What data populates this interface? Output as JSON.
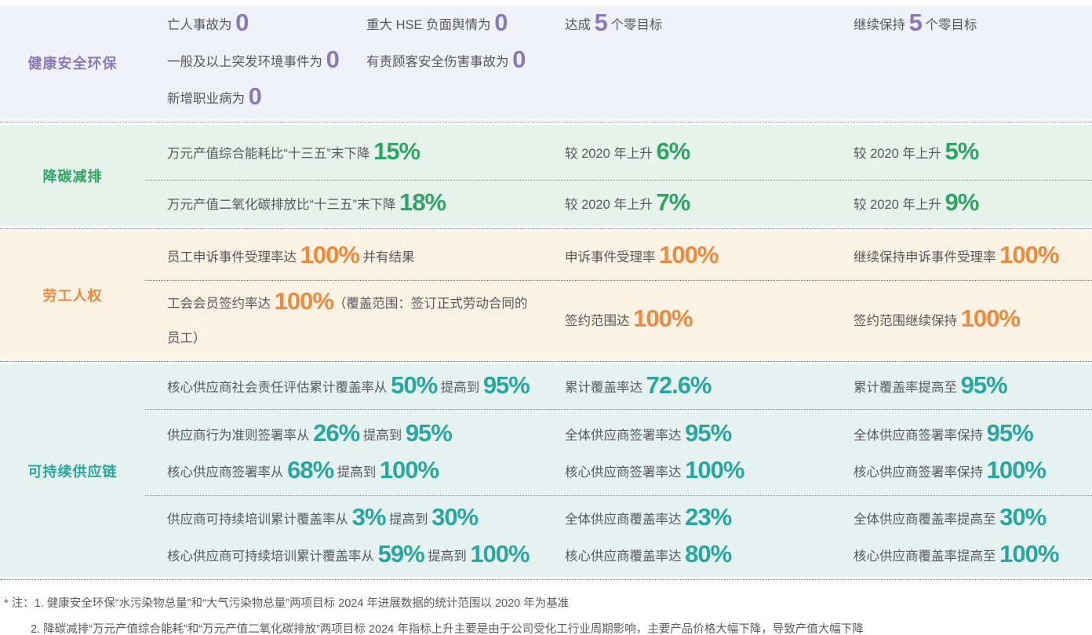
{
  "text_color": "#58595B",
  "divider_color": "#4D7EBD",
  "sections": [
    {
      "id": "hse",
      "label": "健康安全环保",
      "accent_color": "#8A7AB5",
      "bg_color": "#F0F0F8",
      "rows": [
        {
          "top_aligned": true,
          "goal_columns": [
            [
              [
                {
                  "t": "亡人事故为 "
                },
                {
                  "n": "0"
                }
              ],
              [
                {
                  "t": "一般及以上突发环境事件为 "
                },
                {
                  "n": "0"
                }
              ],
              [
                {
                  "t": "新增职业病为 "
                },
                {
                  "n": "0"
                }
              ]
            ],
            [
              [
                {
                  "t": "重大 HSE 负面舆情为 "
                },
                {
                  "n": "0"
                }
              ],
              [
                {
                  "t": "有责顾客安全伤害事故为 "
                },
                {
                  "n": "0"
                }
              ]
            ]
          ],
          "progress": [
            [
              {
                "t": "达成 "
              },
              {
                "n": "5"
              },
              {
                "t": " 个零目标"
              }
            ]
          ],
          "target": [
            [
              {
                "t": "继续保持 "
              },
              {
                "n": "5"
              },
              {
                "t": " 个零目标"
              }
            ]
          ]
        }
      ]
    },
    {
      "id": "carbon",
      "label": "降碳减排",
      "accent_color": "#2FA465",
      "bg_color": "#E7F2EC",
      "rows": [
        {
          "goal": [
            [
              {
                "t": "万元产值综合能耗比“十三五”末下降 "
              },
              {
                "n": "15%"
              }
            ]
          ],
          "progress": [
            [
              {
                "t": "较 2020 年上升 "
              },
              {
                "n": "6%"
              }
            ]
          ],
          "target": [
            [
              {
                "t": "较 2020 年上升 "
              },
              {
                "n": "5%"
              }
            ]
          ]
        },
        {
          "goal": [
            [
              {
                "t": "万元产值二氧化碳排放比“十三五”末下降 "
              },
              {
                "n": "18%"
              }
            ]
          ],
          "progress": [
            [
              {
                "t": "较 2020 年上升 "
              },
              {
                "n": "7%"
              }
            ]
          ],
          "target": [
            [
              {
                "t": "较 2020 年上升 "
              },
              {
                "n": "9%"
              }
            ]
          ]
        }
      ]
    },
    {
      "id": "labor",
      "label": "劳工人权",
      "accent_color": "#EC8A3D",
      "bg_color": "#FCF2E3",
      "rows": [
        {
          "goal": [
            [
              {
                "t": "员工申诉事件受理率达 "
              },
              {
                "n": "100%"
              },
              {
                "t": " 并有结果"
              }
            ]
          ],
          "progress": [
            [
              {
                "t": "申诉事件受理率 "
              },
              {
                "n": "100%"
              }
            ]
          ],
          "target": [
            [
              {
                "t": "继续保持申诉事件受理率 "
              },
              {
                "n": "100%"
              }
            ]
          ]
        },
        {
          "goal": [
            [
              {
                "t": "工会会员签约率达 "
              },
              {
                "n": "100%"
              },
              {
                "t": "（覆盖范围：签订正式劳动合同的"
              }
            ],
            [
              {
                "t": "员工）"
              }
            ]
          ],
          "progress": [
            [
              {
                "t": "签约范围达 "
              },
              {
                "n": "100%"
              }
            ]
          ],
          "target": [
            [
              {
                "t": "签约范围继续保持 "
              },
              {
                "n": "100%"
              }
            ]
          ]
        }
      ]
    },
    {
      "id": "supply",
      "label": "可持续供应链",
      "accent_color": "#28A79E",
      "bg_color": "#E6F2F0",
      "rows": [
        {
          "goal": [
            [
              {
                "t": "核心供应商社会责任评估累计覆盖率从 "
              },
              {
                "n": "50%"
              },
              {
                "t": " 提高到 "
              },
              {
                "n": "95%"
              }
            ]
          ],
          "progress": [
            [
              {
                "t": "累计覆盖率达 "
              },
              {
                "n": "72.6%"
              }
            ]
          ],
          "target": [
            [
              {
                "t": "累计覆盖率提高至 "
              },
              {
                "n": "95%"
              }
            ]
          ]
        },
        {
          "goal": [
            [
              {
                "t": "供应商行为准则签署率从 "
              },
              {
                "n": "26%"
              },
              {
                "t": " 提高到 "
              },
              {
                "n": "95%"
              }
            ],
            [
              {
                "t": "核心供应商签署率从 "
              },
              {
                "n": "68%"
              },
              {
                "t": " 提高到 "
              },
              {
                "n": "100%"
              }
            ]
          ],
          "progress": [
            [
              {
                "t": "全体供应商签署率达 "
              },
              {
                "n": "95%"
              }
            ],
            [
              {
                "t": "核心供应商签署率达 "
              },
              {
                "n": "100%"
              }
            ]
          ],
          "target": [
            [
              {
                "t": "全体供应商签署率保持 "
              },
              {
                "n": "95%"
              }
            ],
            [
              {
                "t": "核心供应商签署率保持 "
              },
              {
                "n": "100%"
              }
            ]
          ]
        },
        {
          "goal": [
            [
              {
                "t": "供应商可持续培训累计覆盖率从 "
              },
              {
                "n": "3%"
              },
              {
                "t": " 提高到 "
              },
              {
                "n": "30%"
              }
            ],
            [
              {
                "t": "核心供应商可持续培训累计覆盖率从 "
              },
              {
                "n": "59%"
              },
              {
                "t": " 提高到 "
              },
              {
                "n": "100%"
              }
            ]
          ],
          "progress": [
            [
              {
                "t": "全体供应商覆盖率达 "
              },
              {
                "n": "23%"
              }
            ],
            [
              {
                "t": "核心供应商覆盖率达 "
              },
              {
                "n": "80%"
              }
            ]
          ],
          "target": [
            [
              {
                "t": "全体供应商覆盖率提高至 "
              },
              {
                "n": "30%"
              }
            ],
            [
              {
                "t": "核心供应商覆盖率提高至 "
              },
              {
                "n": "100%"
              }
            ]
          ]
        }
      ]
    }
  ],
  "footnotes": [
    "* 注：1. 健康安全环保“水污染物总量”和“大气污染物总量”两项目标 2024 年进展数据的统计范围以 2020 年为基准",
    "2. 降碳减排“万元产值综合能耗”和“万元产值二氧化碳排放”两项目标 2024 年指标上升主要是由于公司受化工行业周期影响，主要产品价格大幅下降，导致产值大幅下降"
  ]
}
